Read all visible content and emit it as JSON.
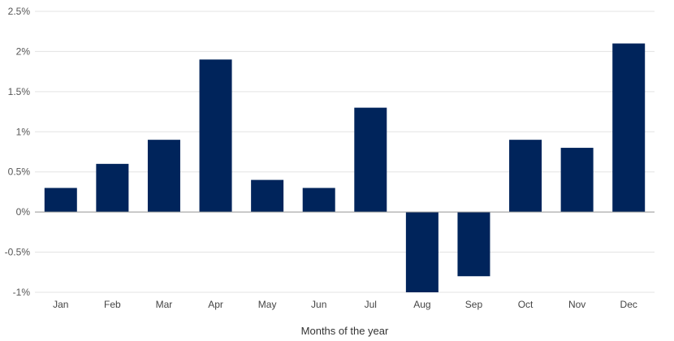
{
  "chart_data": {
    "type": "bar",
    "title": "",
    "xlabel": "Months of the year",
    "ylabel": "",
    "categories": [
      "Jan",
      "Feb",
      "Mar",
      "Apr",
      "May",
      "Jun",
      "Jul",
      "Aug",
      "Sep",
      "Oct",
      "Nov",
      "Dec"
    ],
    "values": [
      0.3,
      0.6,
      0.9,
      1.9,
      0.4,
      0.3,
      1.3,
      -1.0,
      -0.8,
      0.9,
      0.8,
      2.1
    ],
    "ylim": [
      -1.0,
      2.5
    ],
    "yticks": [
      2.5,
      2.0,
      1.5,
      1.0,
      0.5,
      0.0,
      -0.5,
      -1.0
    ],
    "ytick_labels": [
      "2.5%",
      "2%",
      "1.5%",
      "1%",
      "0.5%",
      "0%",
      "-0.5%",
      "-1%"
    ],
    "bar_color": "#00245b",
    "grid": true,
    "legend": "none"
  }
}
